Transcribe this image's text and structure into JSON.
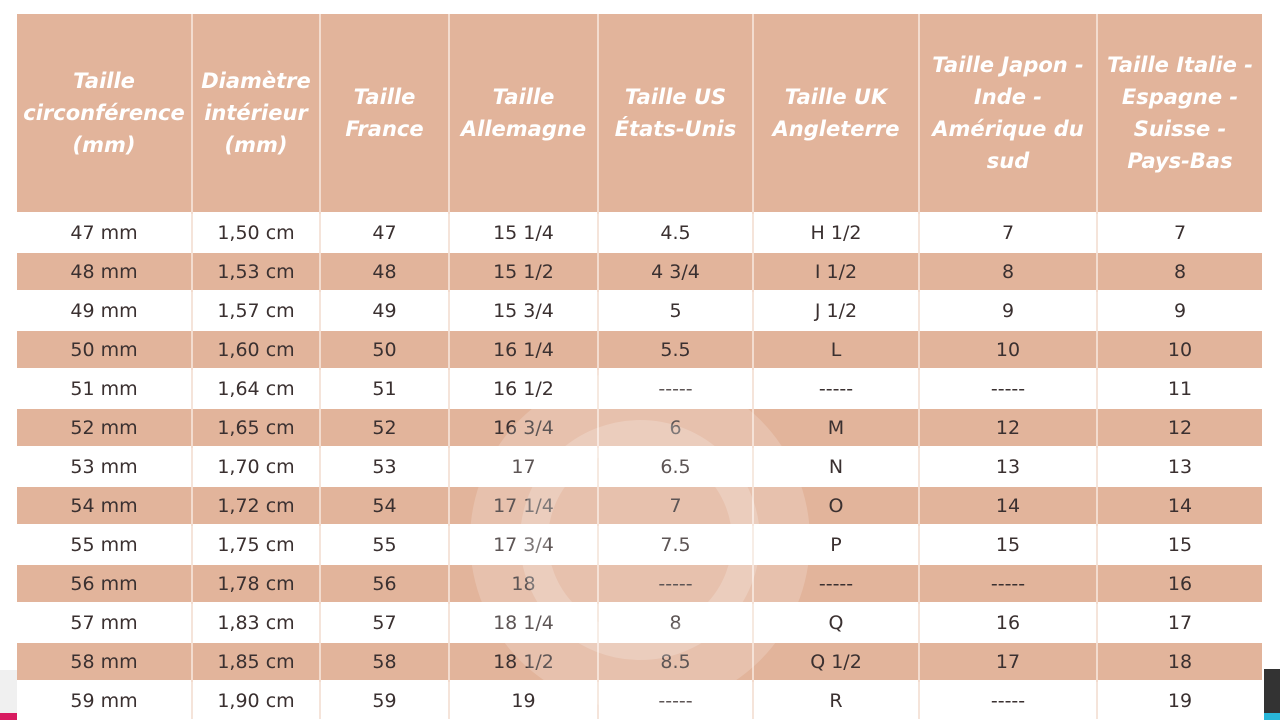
{
  "headers": [
    "Taille circonférence (mm)",
    "Diamètre intérieur (mm)",
    "Taille France",
    "Taille Allemagne",
    "Taille US États-Unis",
    "Taille UK Angleterre",
    "Taille Japon - Inde - Amérique du sud",
    "Taille Italie - Espagne - Suisse - Pays-Bas"
  ],
  "rows": [
    [
      "47 mm",
      "1,50 cm",
      "47",
      "15 1/4",
      "4.5",
      "H 1/2",
      "7",
      "7"
    ],
    [
      "48 mm",
      "1,53 cm",
      "48",
      "15 1/2",
      "4 3/4",
      "I 1/2",
      "8",
      "8"
    ],
    [
      "49 mm",
      "1,57 cm",
      "49",
      "15 3/4",
      "5",
      "J 1/2",
      "9",
      "9"
    ],
    [
      "50 mm",
      "1,60 cm",
      "50",
      "16 1/4",
      "5.5",
      "L",
      "10",
      "10"
    ],
    [
      "51 mm",
      "1,64 cm",
      "51",
      "16 1/2",
      "-----",
      "-----",
      "-----",
      "11"
    ],
    [
      "52 mm",
      "1,65 cm",
      "52",
      "16 3/4",
      "6",
      "M",
      "12",
      "12"
    ],
    [
      "53 mm",
      "1,70 cm",
      "53",
      "17",
      "6.5",
      "N",
      "13",
      "13"
    ],
    [
      "54 mm",
      "1,72 cm",
      "54",
      "17 1/4",
      "7",
      "O",
      "14",
      "14"
    ],
    [
      "55 mm",
      "1,75 cm",
      "55",
      "17 3/4",
      "7.5",
      "P",
      "15",
      "15"
    ],
    [
      "56 mm",
      "1,78 cm",
      "56",
      "18",
      "-----",
      "-----",
      "-----",
      "16"
    ],
    [
      "57 mm",
      "1,83 cm",
      "57",
      "18 1/4",
      "8",
      "Q",
      "16",
      "17"
    ],
    [
      "58 mm",
      "1,85 cm",
      "58",
      "18 1/2",
      "8.5",
      "Q 1/2",
      "17",
      "18"
    ],
    [
      "59 mm",
      "1,90 cm",
      "59",
      "19",
      "-----",
      "R",
      "-----",
      "19"
    ]
  ],
  "colors": {
    "header_bg": "#e2b49b",
    "header_text": "#ffffff",
    "stripe": "#e2b49b",
    "text": "#3a3030"
  },
  "watermark_icon": "g-logo-icon"
}
